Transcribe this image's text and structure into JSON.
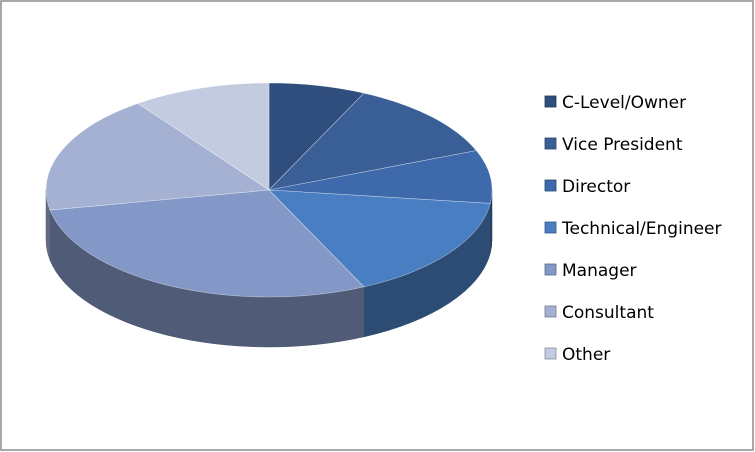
{
  "chart_data": {
    "type": "pie",
    "categories": [
      "C-Level/Owner",
      "Vice President",
      "Director",
      "Technical/Engineer",
      "Manager",
      "Consultant",
      "Other"
    ],
    "values": [
      7,
      12,
      8,
      16,
      29,
      18,
      10
    ],
    "colors": [
      "#2f4e7e",
      "#3a5f96",
      "#3e69aa",
      "#4a7ec2",
      "#8398c6",
      "#a4b1d3",
      "#c3cbe0"
    ],
    "legend": "right"
  }
}
